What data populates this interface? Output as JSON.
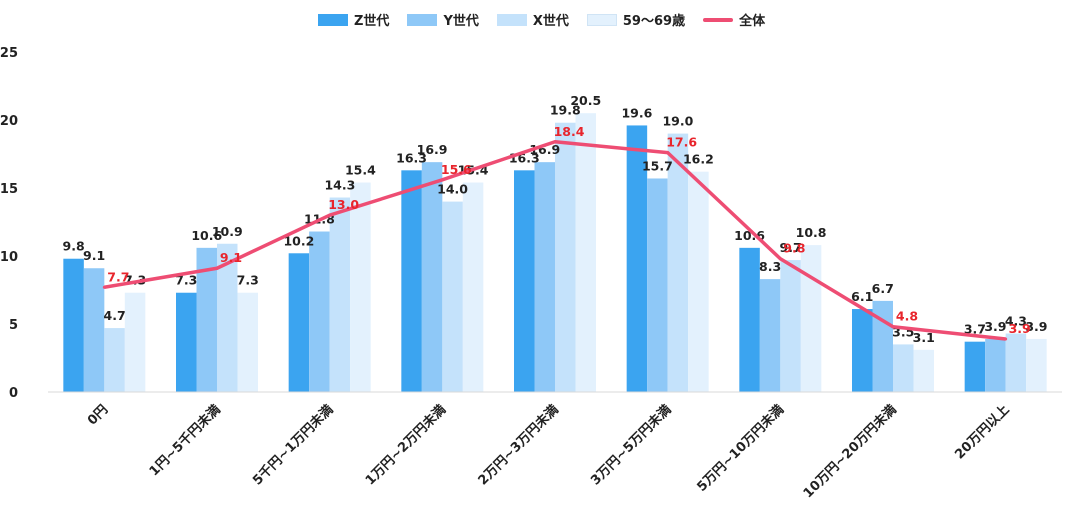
{
  "chart_data": {
    "type": "bar",
    "categories": [
      "0円",
      "1円~5千円未満",
      "5千円~1万円未満",
      "1万円~2万円未満",
      "2万円~3万円未満",
      "3万円~5万円未満",
      "5万円~10万円未満",
      "10万円~20万円未満",
      "20万円以上"
    ],
    "series": [
      {
        "name": "Z世代",
        "color": "#3ba4f0",
        "values": [
          9.8,
          7.3,
          10.2,
          16.3,
          16.3,
          19.6,
          10.6,
          6.1,
          3.7
        ]
      },
      {
        "name": "Y世代",
        "color": "#8ec8f7",
        "values": [
          9.1,
          10.6,
          11.8,
          16.9,
          16.9,
          15.7,
          8.3,
          6.7,
          3.9
        ]
      },
      {
        "name": "X世代",
        "color": "#c4e2fb",
        "values": [
          4.7,
          10.9,
          14.3,
          14.0,
          19.8,
          19.0,
          9.7,
          3.5,
          4.3
        ]
      },
      {
        "name": "59～69歳",
        "color": "#e3f1fd",
        "values": [
          7.3,
          7.3,
          15.4,
          15.4,
          20.5,
          16.2,
          10.8,
          3.1,
          3.9
        ]
      }
    ],
    "line": {
      "name": "全体",
      "color": "#ee4d73",
      "label_color": "#e8252c",
      "values": [
        7.7,
        9.1,
        13.0,
        15.6,
        18.4,
        17.6,
        9.8,
        4.8,
        3.9
      ]
    },
    "ylim": [
      0,
      25
    ],
    "yticks": [
      "0",
      "5",
      "10",
      "15",
      "20",
      "25"
    ],
    "grid": false,
    "legend_position": "top"
  }
}
